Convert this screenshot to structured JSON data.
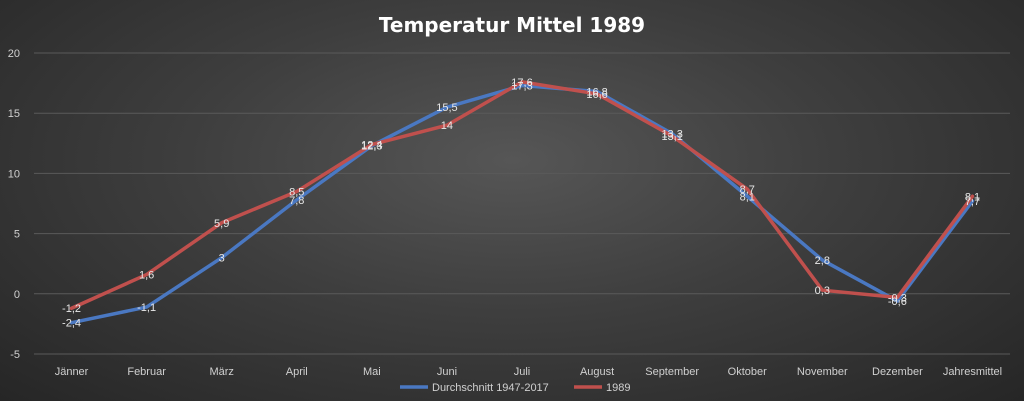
{
  "chart_data": {
    "type": "line",
    "title": "Temperatur Mittel 1989",
    "xlabel": "",
    "ylabel": "",
    "ylim": [
      -5,
      20
    ],
    "yticks": [
      -5,
      0,
      5,
      10,
      15,
      20
    ],
    "grid": true,
    "legend_position": "bottom",
    "categories": [
      "Jänner",
      "Februar",
      "März",
      "April",
      "Mai",
      "Juni",
      "Juli",
      "August",
      "September",
      "Oktober",
      "November",
      "Dezember",
      "Jahresmittel"
    ],
    "series": [
      {
        "name": "Durchschnitt 1947-2017",
        "color": "#4a78c2",
        "values": [
          -2.4,
          -1.1,
          3,
          7.8,
          12.3,
          15.5,
          17.3,
          16.8,
          13.3,
          8.1,
          2.8,
          -0.6,
          7.7
        ],
        "labels": [
          "-2,4",
          "-1,1",
          "3",
          "7,8",
          "12,3",
          "15,5",
          "17,3",
          "16,8",
          "13,3",
          "8,1",
          "2,8",
          "-0,6",
          "7,7"
        ]
      },
      {
        "name": "1989",
        "color": "#c0504d",
        "values": [
          -1.2,
          1.6,
          5.9,
          8.5,
          12.4,
          14,
          17.6,
          16.6,
          13.1,
          8.7,
          0.3,
          -0.3,
          8.1
        ],
        "labels": [
          "-1,2",
          "1,6",
          "5,9",
          "8,5",
          "12,4",
          "14",
          "17,6",
          "16,6",
          "13,1",
          "8,7",
          "0,3",
          "-0,3",
          "8,1"
        ]
      }
    ]
  }
}
